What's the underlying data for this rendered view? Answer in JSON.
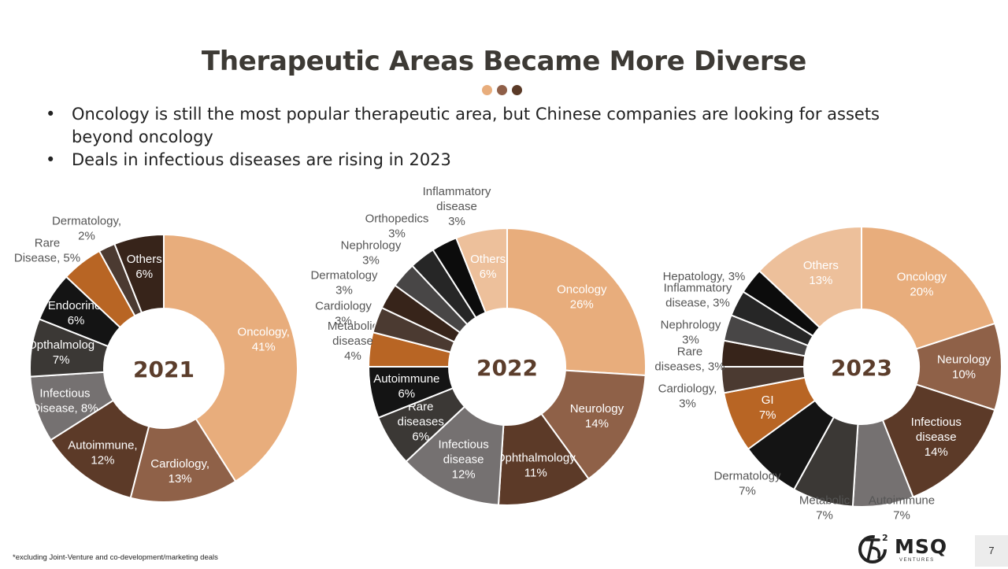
{
  "slide": {
    "title": "Therapeutic Areas Became More Diverse",
    "bullets": [
      "Oncology is still the most popular therapeutic area, but Chinese companies are looking for assets beyond oncology",
      "Deals in infectious diseases are rising in 2023"
    ],
    "bullet_mark": "•",
    "dot_colors": [
      "#e8ad7c",
      "#8f5f48",
      "#5a3a27"
    ],
    "footnote": "*excluding Joint-Venture and co-development/marketing deals",
    "logo_text": "MSQ",
    "logo_sub": "VENTURES",
    "page_number": "7"
  },
  "chart_data": [
    {
      "type": "pie",
      "center_label": "2021",
      "slices": [
        {
          "name": "Oncology",
          "value": 41,
          "label": [
            "Oncology,",
            "41%"
          ],
          "color": "#e8ad7c",
          "inside": true
        },
        {
          "name": "Cardiology",
          "value": 13,
          "label": [
            "Cardiology,",
            "13%"
          ],
          "color": "#8f6148",
          "inside": true
        },
        {
          "name": "Autoimmune",
          "value": 12,
          "label": [
            "Autoimmune,",
            "12%"
          ],
          "color": "#5c3a28",
          "inside": true
        },
        {
          "name": "Infectious Disease",
          "value": 8,
          "label": [
            "Infectious",
            "Disease, 8%"
          ],
          "color": "#757171",
          "inside": true
        },
        {
          "name": "Opthalmology",
          "value": 7,
          "label": [
            "Opthalmolog",
            "7%"
          ],
          "color": "#3b3835",
          "inside": true
        },
        {
          "name": "Endocrine",
          "value": 6,
          "label": [
            "Endocrine,",
            "6%"
          ],
          "color": "#141414",
          "inside": true
        },
        {
          "name": "Rare Disease",
          "value": 5,
          "label": [
            "Rare",
            "Disease, 5%"
          ],
          "color": "#b86524",
          "inside": false
        },
        {
          "name": "Dermatology",
          "value": 2,
          "label": [
            "Dermatology,",
            "2%"
          ],
          "color": "#4b3a31",
          "inside": false
        },
        {
          "name": "Others",
          "value": 6,
          "label": [
            "Others",
            "6%"
          ],
          "color": "#37241a",
          "inside": true
        }
      ]
    },
    {
      "type": "pie",
      "center_label": "2022",
      "slices": [
        {
          "name": "Oncology",
          "value": 26,
          "label": [
            "Oncology",
            "26%"
          ],
          "color": "#e8ad7c",
          "inside": true
        },
        {
          "name": "Neurology",
          "value": 14,
          "label": [
            "Neurology",
            "14%"
          ],
          "color": "#8f6148",
          "inside": true
        },
        {
          "name": "Ophthalmology",
          "value": 11,
          "label": [
            "Ophthalmology",
            "11%"
          ],
          "color": "#5c3a28",
          "inside": true
        },
        {
          "name": "Infectious disease",
          "value": 12,
          "label": [
            "Infectious",
            "disease",
            "12%"
          ],
          "color": "#757171",
          "inside": true
        },
        {
          "name": "Rare diseases",
          "value": 6,
          "label": [
            "Rare",
            "diseases",
            "6%"
          ],
          "color": "#3b3835",
          "inside": true
        },
        {
          "name": "Autoimmune",
          "value": 6,
          "label": [
            "Autoimmune",
            "6%"
          ],
          "color": "#141414",
          "inside": true
        },
        {
          "name": "Metabolic disease",
          "value": 4,
          "label": [
            "Metabolic",
            "disease",
            "4%"
          ],
          "color": "#b86524",
          "inside": false
        },
        {
          "name": "Cardiology",
          "value": 3,
          "label": [
            "Cardiology",
            "3%"
          ],
          "color": "#4b3a31",
          "inside": false
        },
        {
          "name": "Dermatology",
          "value": 3,
          "label": [
            "Dermatology",
            "3%"
          ],
          "color": "#37241a",
          "inside": false
        },
        {
          "name": "Nephrology",
          "value": 3,
          "label": [
            "Nephrology",
            "3%"
          ],
          "color": "#484646",
          "inside": false
        },
        {
          "name": "Orthopedics",
          "value": 3,
          "label": [
            "Orthopedics",
            "3%"
          ],
          "color": "#262626",
          "inside": false
        },
        {
          "name": "Inflammatory disease",
          "value": 3,
          "label": [
            "Inflammatory",
            "disease",
            "3%"
          ],
          "color": "#0c0c0c",
          "inside": false
        },
        {
          "name": "Others",
          "value": 6,
          "label": [
            "Others",
            "6%"
          ],
          "color": "#edc09b",
          "inside": true
        }
      ]
    },
    {
      "type": "pie",
      "center_label": "2023",
      "slices": [
        {
          "name": "Oncology",
          "value": 20,
          "label": [
            "Oncology",
            "20%"
          ],
          "color": "#e8ad7c",
          "inside": true
        },
        {
          "name": "Neurology",
          "value": 10,
          "label": [
            "Neurology",
            "10%"
          ],
          "color": "#8f6148",
          "inside": true
        },
        {
          "name": "Infectious disease",
          "value": 14,
          "label": [
            "Infectious",
            "disease",
            "14%"
          ],
          "color": "#5c3a28",
          "inside": true
        },
        {
          "name": "Autoimmune",
          "value": 7,
          "label": [
            "Autoimmune",
            "7%"
          ],
          "color": "#757171",
          "inside": false
        },
        {
          "name": "Metabolic",
          "value": 7,
          "label": [
            "Metabolic",
            "7%"
          ],
          "color": "#3b3835",
          "inside": false
        },
        {
          "name": "Dermatology",
          "value": 7,
          "label": [
            "Dermatology",
            "7%"
          ],
          "color": "#141414",
          "inside": false
        },
        {
          "name": "GI",
          "value": 7,
          "label": [
            "GI",
            "7%"
          ],
          "color": "#b86524",
          "inside": true
        },
        {
          "name": "Cardiology",
          "value": 3,
          "label": [
            "Cardiology,",
            "3%"
          ],
          "color": "#4b3a31",
          "inside": false
        },
        {
          "name": "Rare diseases",
          "value": 3,
          "label": [
            "Rare",
            "diseases, 3%"
          ],
          "color": "#37241a",
          "inside": false
        },
        {
          "name": "Nephrology",
          "value": 3,
          "label": [
            "Nephrology",
            "3%"
          ],
          "color": "#484646",
          "inside": false
        },
        {
          "name": "Inflammatory disease",
          "value": 3,
          "label": [
            "Inflammatory",
            "disease, 3%"
          ],
          "color": "#262626",
          "inside": false
        },
        {
          "name": "Hepatology",
          "value": 3,
          "label": [
            "Hepatology, 3%"
          ],
          "color": "#0c0c0c",
          "inside": false
        },
        {
          "name": "Others",
          "value": 13,
          "label": [
            "Others",
            "13%"
          ],
          "color": "#edc09b",
          "inside": true
        }
      ]
    }
  ]
}
